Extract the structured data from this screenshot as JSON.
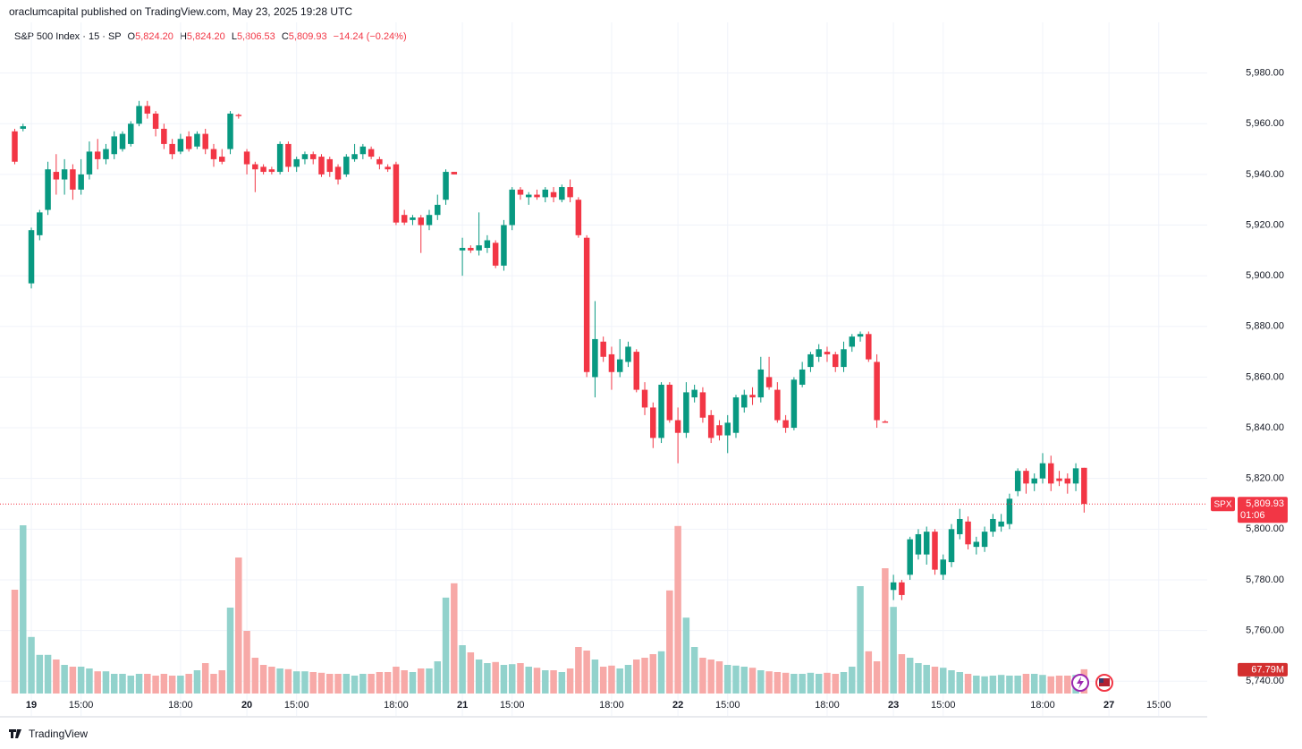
{
  "chart_data": {
    "type": "candlestick",
    "header": "oraclumcapital published on TradingView.com, May 23, 2025 19:28 UTC",
    "legend": {
      "symbol": "S&P 500 Index · 15 · SP",
      "o": "O",
      "open": "5,824.20",
      "h": "H",
      "high": "5,824.20",
      "l": "L",
      "low": "5,806.53",
      "c": "C",
      "close": "5,809.93",
      "change": "−14.24 (−0.24%)"
    },
    "footer": "TradingView",
    "up_color": "#089981",
    "down_color": "#f23645",
    "volume_up_color": "#92d2cc",
    "volume_down_color": "#f7a9a7",
    "grid": true,
    "ylim": [
      5726.3,
      6000
    ],
    "yticks": [
      {
        "value": 5740,
        "label": "5,740.00"
      },
      {
        "value": 5760,
        "label": "5,760.00"
      },
      {
        "value": 5780,
        "label": "5,780.00"
      },
      {
        "value": 5800,
        "label": "5,800.00"
      },
      {
        "value": 5820,
        "label": "5,820.00"
      },
      {
        "value": 5840,
        "label": "5,840.00"
      },
      {
        "value": 5860,
        "label": "5,860.00"
      },
      {
        "value": 5880,
        "label": "5,880.00"
      },
      {
        "value": 5900,
        "label": "5,900.00"
      },
      {
        "value": 5920,
        "label": "5,920.00"
      },
      {
        "value": 5940,
        "label": "5,940.00"
      },
      {
        "value": 5960,
        "label": "5,960.00"
      },
      {
        "value": 5980,
        "label": "5,980.00"
      }
    ],
    "xlim": [
      -1.78,
      143.85
    ],
    "xticks": [
      {
        "value": 2,
        "label": "19"
      },
      {
        "value": 8,
        "label": "15:00"
      },
      {
        "value": 20,
        "label": "18:00"
      },
      {
        "value": 28,
        "label": "20"
      },
      {
        "value": 34,
        "label": "15:00"
      },
      {
        "value": 46,
        "label": "18:00"
      },
      {
        "value": 54,
        "label": "21"
      },
      {
        "value": 60,
        "label": "15:00"
      },
      {
        "value": 72,
        "label": "18:00"
      },
      {
        "value": 80,
        "label": "22"
      },
      {
        "value": 86,
        "label": "15:00"
      },
      {
        "value": 98,
        "label": "18:00"
      },
      {
        "value": 106,
        "label": "23"
      },
      {
        "value": 112,
        "label": "15:00"
      },
      {
        "value": 124,
        "label": "18:00"
      },
      {
        "value": 132,
        "label": "27"
      },
      {
        "value": 138,
        "label": "15:00"
      }
    ],
    "open": [
      5957,
      5958,
      5897,
      5916,
      5926,
      5941,
      5938,
      5942,
      5934,
      5940,
      5949,
      5946,
      5948,
      5950,
      5952,
      5960,
      5967,
      5964,
      5958,
      5952,
      5949,
      5955,
      5951,
      5956,
      5950,
      5947,
      5950,
      5963.5,
      5949,
      5944,
      5943,
      5942,
      5941,
      5952,
      5943,
      5946,
      5948,
      5947,
      5946,
      5943,
      5940,
      5946,
      5948,
      5950,
      5946,
      5943,
      5944,
      5924,
      5922,
      5923,
      5920,
      5924,
      5930,
      5941,
      5910,
      5911,
      5910,
      5911,
      5913,
      5904,
      5920,
      5934,
      5931,
      5932,
      5931,
      5933,
      5930,
      5935,
      5930,
      5915,
      5860,
      5874,
      5869,
      5862,
      5866,
      5870,
      5855,
      5848,
      5836,
      5857,
      5843,
      5838,
      5852,
      5854,
      5845,
      5841,
      5837,
      5838,
      5848,
      5853,
      5852,
      5860,
      5855,
      5843,
      5840,
      5857,
      5864,
      5868,
      5870,
      5869,
      5864,
      5872,
      5876,
      5877,
      5866,
      5842.5,
      5776,
      5779,
      5782,
      5790,
      5790,
      5799,
      5782,
      5787,
      5798,
      5803,
      5793,
      5793,
      5799,
      5801,
      5802,
      5815,
      5823,
      5818,
      5820,
      5826,
      5820,
      5820,
      5818,
      5824.2
    ],
    "high": [
      5958,
      5960,
      5919,
      5926,
      5945,
      5948,
      5946,
      5944,
      5946,
      5953,
      5954,
      5952,
      5957,
      5957,
      5961,
      5969,
      5969,
      5965,
      5960,
      5954,
      5956,
      5957,
      5957,
      5958,
      5952,
      5950,
      5965,
      5964,
      5950,
      5945,
      5944,
      5943,
      5953,
      5953,
      5947,
      5949,
      5949,
      5948,
      5947,
      5944,
      5948,
      5952,
      5952,
      5951,
      5947,
      5944,
      5945,
      5926,
      5924,
      5924,
      5926,
      5932,
      5942,
      5941,
      5915,
      5912,
      5925,
      5916,
      5914,
      5922,
      5935,
      5935,
      5933,
      5934,
      5935,
      5935,
      5936,
      5938,
      5931,
      5916,
      5890,
      5876,
      5872,
      5875,
      5874,
      5871,
      5858,
      5850,
      5858,
      5858,
      5848,
      5858,
      5857,
      5856,
      5847,
      5843,
      5845,
      5853,
      5855,
      5856,
      5868,
      5868,
      5858,
      5845,
      5860,
      5866,
      5870,
      5873,
      5872,
      5870,
      5874,
      5877,
      5878,
      5878,
      5869,
      5843,
      5782,
      5780,
      5797,
      5800,
      5801,
      5800,
      5790,
      5802,
      5808,
      5805,
      5797,
      5801,
      5806,
      5806,
      5814,
      5824,
      5824,
      5822,
      5830,
      5829,
      5823,
      5822,
      5826,
      5824.2
    ],
    "low": [
      5944,
      5957,
      5895,
      5914,
      5924,
      5932,
      5932,
      5930,
      5932,
      5938,
      5942,
      5944,
      5946,
      5949,
      5951,
      5959,
      5962,
      5955,
      5950,
      5946,
      5948,
      5949,
      5950,
      5948,
      5943,
      5944,
      5948,
      5962,
      5940,
      5933,
      5940,
      5940,
      5940,
      5941,
      5941,
      5944,
      5944,
      5939,
      5939,
      5936,
      5939,
      5945,
      5946,
      5946,
      5942,
      5941,
      5920,
      5920,
      5920,
      5909,
      5918,
      5922,
      5928,
      5940,
      5900,
      5909,
      5908,
      5909,
      5903,
      5902,
      5918,
      5930,
      5928,
      5930,
      5929,
      5929,
      5929,
      5929,
      5915,
      5860,
      5852,
      5866,
      5855,
      5860,
      5864,
      5854,
      5845,
      5832,
      5834,
      5842,
      5826,
      5836,
      5850,
      5842,
      5834,
      5835,
      5830,
      5836,
      5846,
      5849,
      5850,
      5855,
      5842,
      5838,
      5839,
      5856,
      5862,
      5866,
      5866,
      5862,
      5862,
      5870,
      5874,
      5866,
      5840,
      5842,
      5772,
      5772,
      5780,
      5788,
      5786,
      5782,
      5780,
      5785,
      5796,
      5792,
      5790,
      5791,
      5797,
      5799,
      5800,
      5813,
      5814,
      5815,
      5818,
      5815,
      5817,
      5814,
      5815,
      5806.53
    ],
    "close": [
      5945,
      5959,
      5918,
      5925,
      5942,
      5938,
      5942,
      5934,
      5940,
      5949,
      5946,
      5950,
      5955,
      5956,
      5960,
      5967,
      5964,
      5958,
      5952,
      5948,
      5954,
      5950,
      5956,
      5950,
      5946,
      5945,
      5964,
      5963,
      5944,
      5942,
      5941,
      5941,
      5952,
      5943,
      5946,
      5948,
      5946,
      5940,
      5941,
      5938,
      5947,
      5948,
      5951,
      5947,
      5944,
      5942,
      5921,
      5921,
      5923,
      5920,
      5924,
      5928,
      5941,
      5940,
      5911,
      5910,
      5912,
      5914,
      5904,
      5920,
      5934,
      5932,
      5932,
      5931,
      5934,
      5931,
      5935,
      5931,
      5916,
      5862,
      5875,
      5868,
      5862,
      5867,
      5872,
      5855,
      5848,
      5836,
      5857,
      5843,
      5838,
      5854,
      5855,
      5844,
      5836,
      5837,
      5842,
      5852,
      5853,
      5852,
      5863,
      5856,
      5843,
      5840,
      5859,
      5863,
      5869,
      5871,
      5869,
      5864,
      5871,
      5876,
      5877,
      5867,
      5843,
      5842,
      5779,
      5774,
      5796,
      5798,
      5799,
      5784,
      5788,
      5800,
      5804,
      5794,
      5795,
      5799,
      5804,
      5803,
      5812,
      5823,
      5818,
      5820,
      5826,
      5818,
      5819,
      5818,
      5824,
      5809.93
    ],
    "volume": [
      290,
      470,
      158,
      108,
      108,
      95,
      80,
      75,
      75,
      70,
      62,
      62,
      55,
      55,
      50,
      55,
      55,
      50,
      55,
      50,
      50,
      55,
      65,
      85,
      55,
      65,
      240,
      380,
      175,
      100,
      80,
      75,
      70,
      68,
      62,
      62,
      60,
      58,
      55,
      55,
      55,
      50,
      55,
      55,
      60,
      60,
      75,
      65,
      60,
      70,
      70,
      90,
      268,
      308,
      135,
      115,
      95,
      85,
      88,
      80,
      82,
      85,
      75,
      72,
      65,
      65,
      60,
      70,
      130,
      120,
      95,
      75,
      78,
      70,
      80,
      95,
      100,
      110,
      118,
      288,
      468,
      212,
      130,
      100,
      95,
      90,
      80,
      78,
      75,
      72,
      65,
      62,
      60,
      58,
      55,
      55,
      58,
      55,
      58,
      55,
      60,
      75,
      300,
      118,
      90,
      350,
      242,
      110,
      100,
      85,
      80,
      75,
      72,
      65,
      60,
      55,
      50,
      48,
      50,
      52,
      50,
      50,
      55,
      55,
      52,
      48,
      50,
      50,
      52,
      67.79
    ],
    "price_tag": {
      "value": 5809.93,
      "label": "5,809.93"
    },
    "symbol_tag": "SPX",
    "countdown": "01:06",
    "volume_tag": {
      "value": 67.79,
      "label": "67.79M"
    }
  }
}
